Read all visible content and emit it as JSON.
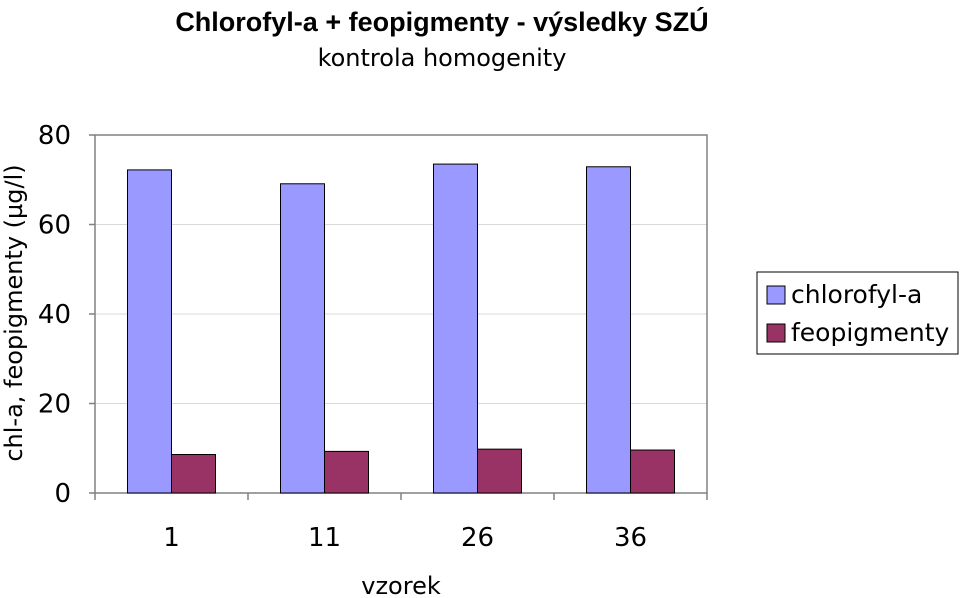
{
  "chart_data": {
    "type": "bar",
    "title": "Chlorofyl-a + feopigmenty - výsledky SZÚ",
    "subtitle": "kontrola homogenity",
    "xlabel": "vzorek",
    "ylabel": "chl-a, feopigmenty (µg/l)",
    "categories": [
      "1",
      "11",
      "26",
      "36"
    ],
    "series": [
      {
        "name": "chlorofyl-a",
        "color": "#9999ff",
        "values": [
          72.2,
          69.1,
          73.5,
          72.9
        ]
      },
      {
        "name": "feopigmenty",
        "color": "#993366",
        "values": [
          8.6,
          9.3,
          9.8,
          9.6
        ]
      }
    ],
    "ylim": [
      0,
      80
    ],
    "yticks": [
      "0",
      "20",
      "40",
      "60",
      "80"
    ],
    "grid": true,
    "legend_position": "right"
  }
}
